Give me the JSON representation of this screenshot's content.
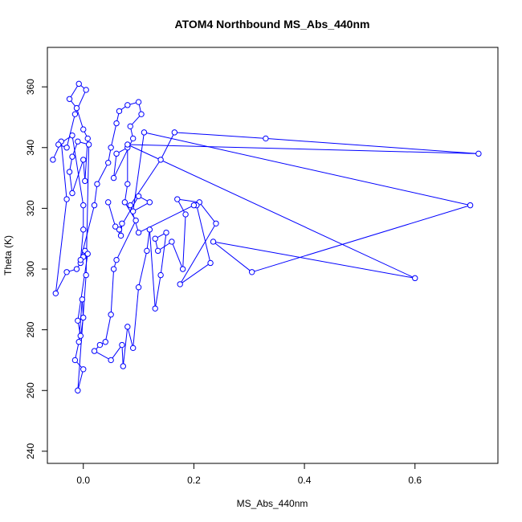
{
  "chart_data": {
    "type": "line",
    "title": "ATOM4 Northbound MS_Abs_440nm",
    "xlabel": "MS_Abs_440nm",
    "ylabel": "Theta (K)",
    "xlim": [
      -0.065,
      0.75
    ],
    "ylim": [
      236,
      373
    ],
    "xticks": [
      0.0,
      0.2,
      0.4,
      0.6
    ],
    "xtick_labels": [
      "0.0",
      "0.2",
      "0.4",
      "0.6"
    ],
    "yticks": [
      240,
      260,
      280,
      300,
      320,
      340,
      360
    ],
    "ytick_labels": [
      "240",
      "260",
      "280",
      "300",
      "320",
      "340",
      "360"
    ],
    "grid": false,
    "legend": "none",
    "color": "#0000ff",
    "marker": "open-circle",
    "series": [
      {
        "values": [
          [
            -0.055,
            336
          ],
          [
            -0.04,
            342
          ],
          [
            -0.03,
            323
          ],
          [
            -0.05,
            292
          ],
          [
            -0.03,
            299
          ],
          [
            -0.012,
            300
          ],
          [
            -0.005,
            302
          ],
          [
            0.0,
            304
          ],
          [
            0.003,
            306
          ],
          [
            0.008,
            305
          ],
          [
            -0.01,
            283
          ],
          [
            -0.005,
            278
          ],
          [
            0.0,
            284
          ],
          [
            -0.002,
            290
          ],
          [
            -0.008,
            276
          ],
          [
            -0.015,
            270
          ],
          [
            0.0,
            267
          ],
          [
            -0.01,
            260
          ],
          [
            0.005,
            298
          ],
          [
            0.01,
            341
          ],
          [
            -0.01,
            342
          ],
          [
            -0.02,
            337
          ],
          [
            -0.025,
            332
          ],
          [
            -0.02,
            325
          ],
          [
            0.0,
            336
          ],
          [
            0.003,
            329
          ],
          [
            0.008,
            343
          ],
          [
            0.0,
            346
          ],
          [
            -0.012,
            353
          ],
          [
            -0.025,
            356
          ],
          [
            -0.008,
            361
          ],
          [
            0.005,
            359
          ],
          [
            -0.015,
            351
          ],
          [
            -0.03,
            340
          ],
          [
            -0.045,
            341
          ],
          [
            -0.02,
            344
          ],
          [
            0.0,
            321
          ],
          [
            0.0,
            313
          ],
          [
            -0.005,
            303
          ],
          [
            0.02,
            321
          ],
          [
            0.025,
            328
          ],
          [
            0.045,
            335
          ],
          [
            0.05,
            340
          ],
          [
            0.06,
            348
          ],
          [
            0.065,
            352
          ],
          [
            0.08,
            354
          ],
          [
            0.1,
            355
          ],
          [
            0.105,
            351
          ],
          [
            0.085,
            347
          ],
          [
            0.09,
            343
          ],
          [
            0.055,
            330
          ],
          [
            0.06,
            338
          ],
          [
            0.08,
            340
          ],
          [
            0.08,
            328
          ],
          [
            0.075,
            322
          ],
          [
            0.095,
            316
          ],
          [
            0.06,
            303
          ],
          [
            0.055,
            300
          ],
          [
            0.05,
            285
          ],
          [
            0.04,
            276
          ],
          [
            0.03,
            275
          ],
          [
            0.02,
            273
          ],
          [
            0.05,
            270
          ],
          [
            0.07,
            275
          ],
          [
            0.072,
            268
          ],
          [
            0.08,
            281
          ],
          [
            0.09,
            274
          ],
          [
            0.1,
            294
          ],
          [
            0.115,
            306
          ],
          [
            0.12,
            313
          ],
          [
            0.13,
            287
          ],
          [
            0.14,
            298
          ],
          [
            0.15,
            312
          ],
          [
            0.13,
            310
          ],
          [
            0.135,
            306
          ],
          [
            0.16,
            309
          ],
          [
            0.18,
            300
          ],
          [
            0.185,
            318
          ],
          [
            0.17,
            323
          ],
          [
            0.21,
            322
          ],
          [
            0.24,
            315
          ],
          [
            0.175,
            295
          ],
          [
            0.23,
            302
          ],
          [
            0.205,
            321
          ],
          [
            0.2,
            321
          ],
          [
            0.1,
            312
          ],
          [
            0.085,
            321
          ],
          [
            0.14,
            336
          ],
          [
            0.165,
            345
          ],
          [
            0.33,
            343
          ],
          [
            0.715,
            338
          ],
          [
            0.08,
            341
          ],
          [
            0.6,
            297
          ],
          [
            0.235,
            309
          ],
          [
            0.305,
            299
          ],
          [
            0.7,
            321
          ],
          [
            0.11,
            345
          ],
          [
            0.09,
            319
          ],
          [
            0.12,
            322
          ],
          [
            0.1,
            324
          ],
          [
            0.065,
            313
          ],
          [
            0.07,
            315
          ],
          [
            0.068,
            311
          ],
          [
            0.058,
            314
          ],
          [
            0.045,
            322
          ]
        ]
      }
    ]
  }
}
